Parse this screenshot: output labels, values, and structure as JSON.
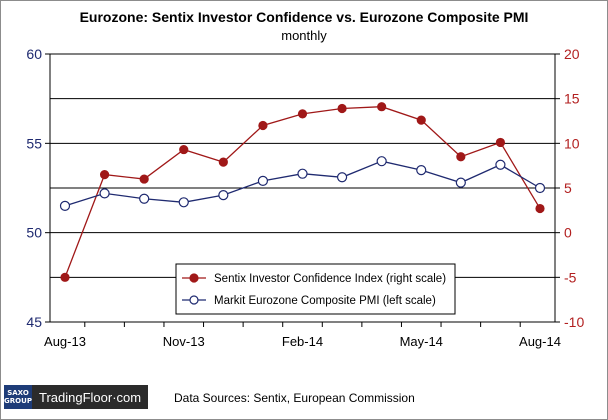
{
  "chart_data": {
    "type": "line",
    "title": "Eurozone: Sentix Investor Confidence vs. Eurozone Composite PMI",
    "subtitle": "monthly",
    "x": [
      "Aug-13",
      "Sep-13",
      "Oct-13",
      "Nov-13",
      "Dec-13",
      "Jan-14",
      "Feb-14",
      "Mar-14",
      "Apr-14",
      "May-14",
      "Jun-14",
      "Jul-14",
      "Aug-14"
    ],
    "x_tick_labels": [
      "Aug-13",
      "Nov-13",
      "Feb-14",
      "May-14",
      "Aug-14"
    ],
    "y_left": {
      "min": 45,
      "max": 60,
      "ticks": [
        45,
        50,
        55,
        60
      ]
    },
    "y_right": {
      "min": -10,
      "max": 20,
      "ticks": [
        -10,
        -5,
        0,
        5,
        10,
        15,
        20
      ]
    },
    "grid": "horizontal",
    "legend_position": "bottom-center",
    "series": [
      {
        "name": "Sentix Investor Confidence Index (right scale)",
        "axis": "right",
        "color": "#a01818",
        "marker": "filled-circle",
        "values": [
          -5.0,
          6.5,
          6.0,
          9.3,
          7.9,
          12.0,
          13.3,
          13.9,
          14.1,
          12.6,
          8.5,
          10.1,
          2.7
        ]
      },
      {
        "name": "Markit Eurozone Composite PMI (left scale)",
        "axis": "left",
        "color": "#1f2a70",
        "marker": "open-circle",
        "values": [
          51.5,
          52.2,
          51.9,
          51.7,
          52.1,
          52.9,
          53.3,
          53.1,
          54.0,
          53.5,
          52.8,
          53.8,
          52.5
        ]
      }
    ]
  },
  "source_label": "Data Sources: Sentix, European Commission",
  "logo": {
    "brand_top": "SAXO",
    "brand_bottom": "GROUP",
    "name": "TradingFloor·com"
  }
}
